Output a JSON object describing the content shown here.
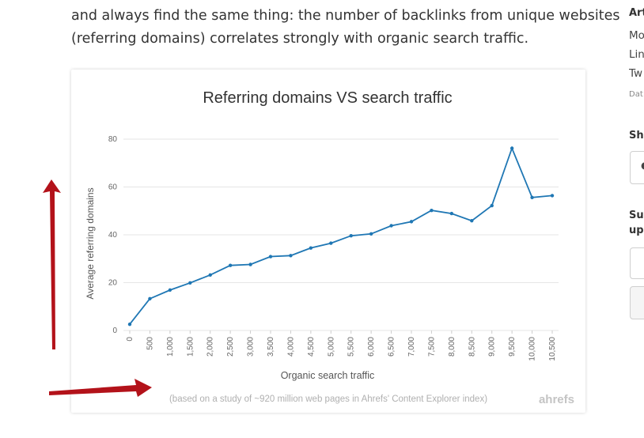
{
  "article": {
    "line1": "and always find the same thing: the number of backlinks from unique websites",
    "line2": "(referring domains) correlates strongly with organic search traffic."
  },
  "sidebar": {
    "heading_1": "Art",
    "meta_1": "Mo",
    "meta_2": "Lin",
    "meta_3": "Tw",
    "meta_small": "Dat",
    "share_heading": "Sh",
    "share_icon": "twitter-icon",
    "subscribe_line1": "Su",
    "subscribe_line2": "up"
  },
  "chart_data": {
    "type": "line",
    "title": "Referring domains VS search traffic",
    "xlabel": "Organic search traffic",
    "ylabel": "Average referring domains",
    "note": "(based on a study of ~920 million web pages in Ahrefs' Content Explorer index)",
    "brand": "ahrefs",
    "ylim": [
      0,
      80
    ],
    "y_ticks": [
      "0",
      "20",
      "40",
      "60",
      "80"
    ],
    "x_tick_labels": [
      "0",
      "500",
      "1,000",
      "1,500",
      "2,000",
      "2,500",
      "3,000",
      "3,500",
      "4,000",
      "4,500",
      "5,000",
      "5,500",
      "6,000",
      "6,500",
      "7,000",
      "7,500",
      "8,000",
      "8,500",
      "9,000",
      "9,500",
      "10,000",
      "10,500"
    ],
    "series": [
      {
        "name": "",
        "color": "#1f77b4",
        "values": [
          2.6,
          13.3,
          16.9,
          19.9,
          23.2,
          27.2,
          27.6,
          30.9,
          31.3,
          34.5,
          36.5,
          39.6,
          40.4,
          43.8,
          45.5,
          50.2,
          48.9,
          45.9,
          52.2,
          76.2,
          55.6,
          56.4
        ]
      }
    ],
    "grid": true
  },
  "colors": {
    "line": "#1f77b4",
    "arrow": "#b3121a",
    "grid": "#e6e6e6"
  }
}
